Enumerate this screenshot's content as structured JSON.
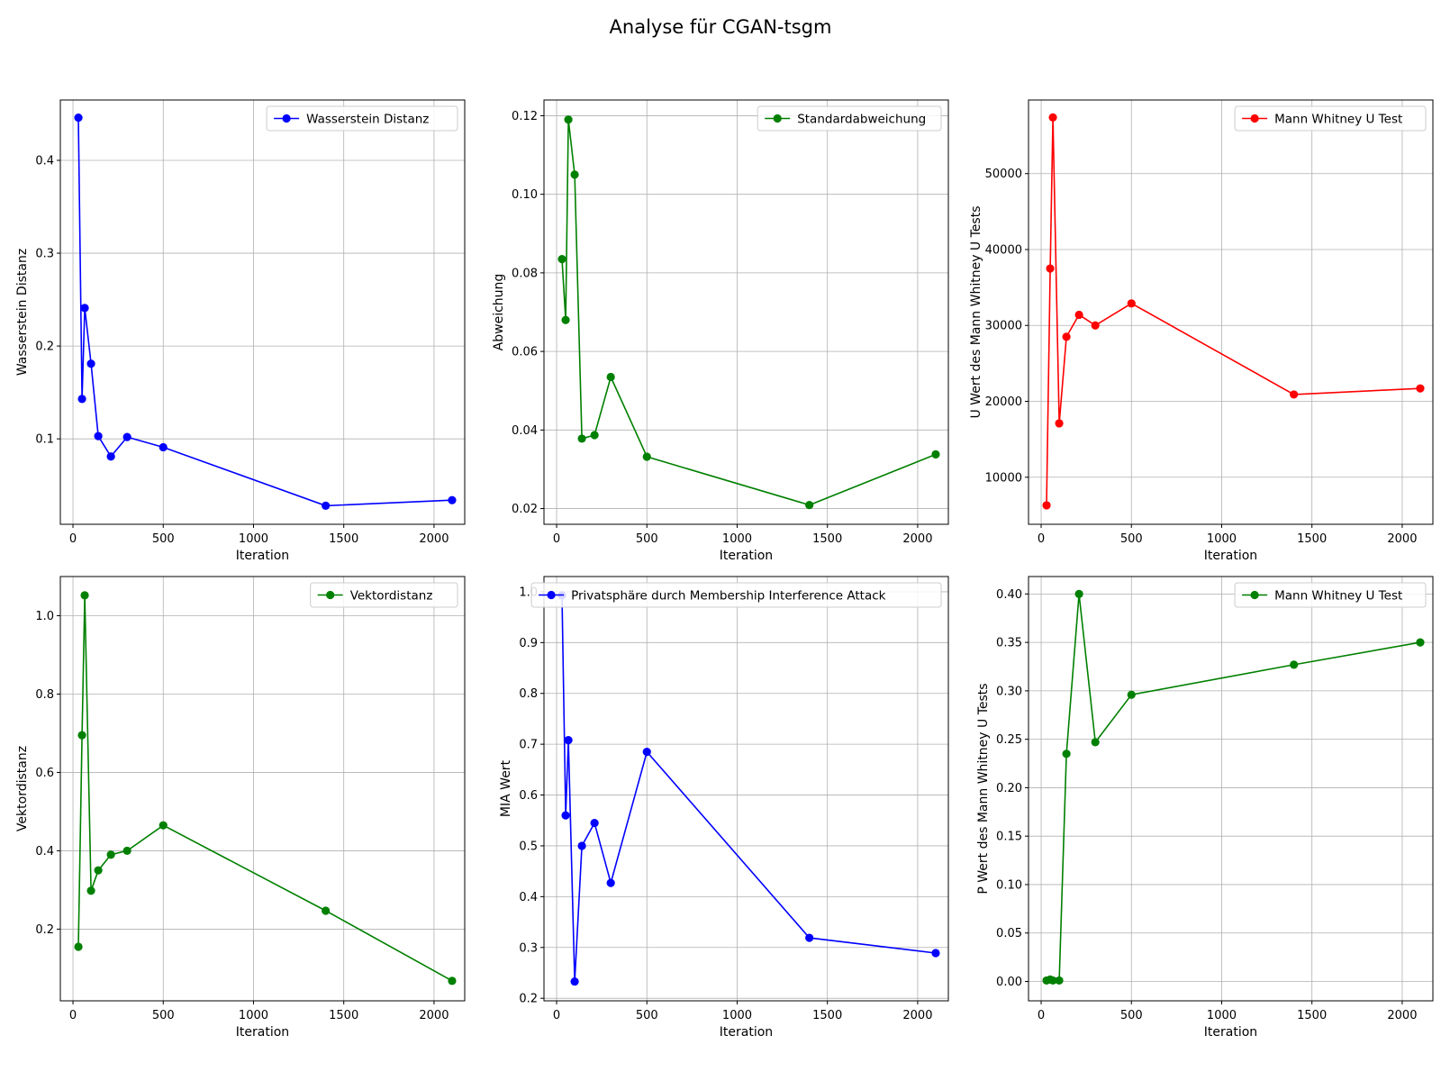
{
  "suptitle": "Analyse für CGAN-tsgm",
  "chart_data": [
    {
      "type": "line",
      "xlabel": "Iteration",
      "ylabel": "Wasserstein Distanz",
      "legend": "Wasserstein Distanz",
      "legend_loc": "upper right",
      "color": "#0000ff",
      "grid": true,
      "xlim": [
        -70,
        2170
      ],
      "ylim": [
        0.008,
        0.465
      ],
      "xticks": [
        0,
        500,
        1000,
        1500,
        2000
      ],
      "yticks": [
        0.1,
        0.2,
        0.3,
        0.4
      ],
      "yticklabels": [
        "0.1",
        "0.2",
        "0.3",
        "0.4"
      ],
      "x": [
        30,
        50,
        65,
        100,
        140,
        210,
        300,
        500,
        1400,
        2100
      ],
      "y": [
        0.446,
        0.143,
        0.241,
        0.181,
        0.103,
        0.081,
        0.102,
        0.091,
        0.028,
        0.034
      ]
    },
    {
      "type": "line",
      "xlabel": "Iteration",
      "ylabel": "Abweichung",
      "legend": "Standardabweichung",
      "legend_loc": "upper right",
      "color": "#008000",
      "grid": true,
      "xlim": [
        -70,
        2170
      ],
      "ylim": [
        0.016,
        0.124
      ],
      "xticks": [
        0,
        500,
        1000,
        1500,
        2000
      ],
      "yticks": [
        0.02,
        0.04,
        0.06,
        0.08,
        0.1,
        0.12
      ],
      "yticklabels": [
        "0.02",
        "0.04",
        "0.06",
        "0.08",
        "0.10",
        "0.12"
      ],
      "x": [
        30,
        50,
        65,
        100,
        140,
        210,
        300,
        500,
        1400,
        2100
      ],
      "y": [
        0.0835,
        0.068,
        0.119,
        0.105,
        0.0378,
        0.0387,
        0.0535,
        0.0332,
        0.0209,
        0.0338
      ]
    },
    {
      "type": "line",
      "xlabel": "Iteration",
      "ylabel": "U Wert des Mann Whitney U Tests",
      "legend": "Mann Whitney U Test",
      "legend_loc": "upper right",
      "color": "#ff0000",
      "grid": true,
      "xlim": [
        -70,
        2170
      ],
      "ylim": [
        3800,
        59700
      ],
      "xticks": [
        0,
        500,
        1000,
        1500,
        2000
      ],
      "yticks": [
        10000,
        20000,
        30000,
        40000,
        50000
      ],
      "yticklabels": [
        "10000",
        "20000",
        "30000",
        "40000",
        "50000"
      ],
      "x": [
        30,
        50,
        65,
        100,
        140,
        210,
        300,
        500,
        1400,
        2100
      ],
      "y": [
        6300,
        37500,
        57400,
        17100,
        28500,
        31400,
        30000,
        32900,
        20900,
        21700
      ]
    },
    {
      "type": "line",
      "xlabel": "Iteration",
      "ylabel": "Vektordistanz",
      "legend": "Vektordistanz",
      "legend_loc": "upper right",
      "color": "#008000",
      "grid": true,
      "xlim": [
        -70,
        2170
      ],
      "ylim": [
        0.017,
        1.1
      ],
      "xticks": [
        0,
        500,
        1000,
        1500,
        2000
      ],
      "yticks": [
        0.2,
        0.4,
        0.6,
        0.8,
        1.0
      ],
      "yticklabels": [
        "0.2",
        "0.4",
        "0.6",
        "0.8",
        "1.0"
      ],
      "x": [
        30,
        50,
        65,
        100,
        140,
        210,
        300,
        500,
        1400,
        2100
      ],
      "y": [
        0.155,
        0.695,
        1.052,
        0.298,
        0.35,
        0.39,
        0.4,
        0.465,
        0.247,
        0.068
      ]
    },
    {
      "type": "line",
      "xlabel": "Iteration",
      "ylabel": "MIA Wert",
      "legend": "Privatsphäre durch Membership Interference Attack",
      "legend_loc": "upper right",
      "color": "#0000ff",
      "grid": true,
      "xlim": [
        -70,
        2170
      ],
      "ylim": [
        0.195,
        1.03
      ],
      "xticks": [
        0,
        500,
        1000,
        1500,
        2000
      ],
      "yticks": [
        0.2,
        0.3,
        0.4,
        0.5,
        0.6,
        0.7,
        0.8,
        0.9,
        1.0
      ],
      "yticklabels": [
        "0.2",
        "0.3",
        "0.4",
        "0.5",
        "0.6",
        "0.7",
        "0.8",
        "0.9",
        "1.0"
      ],
      "x": [
        30,
        50,
        65,
        100,
        140,
        210,
        300,
        500,
        1400,
        2100
      ],
      "y": [
        0.993,
        0.56,
        0.708,
        0.233,
        0.5,
        0.545,
        0.427,
        0.685,
        0.319,
        0.289
      ]
    },
    {
      "type": "line",
      "xlabel": "Iteration",
      "ylabel": "P Wert des Mann Whitney U Tests",
      "legend": "Mann Whitney U Test",
      "legend_loc": "upper right",
      "color": "#008000",
      "grid": true,
      "xlim": [
        -70,
        2170
      ],
      "ylim": [
        -0.02,
        0.418
      ],
      "xticks": [
        0,
        500,
        1000,
        1500,
        2000
      ],
      "yticks": [
        0.0,
        0.05,
        0.1,
        0.15,
        0.2,
        0.25,
        0.3,
        0.35,
        0.4
      ],
      "yticklabels": [
        "0.00",
        "0.05",
        "0.10",
        "0.15",
        "0.20",
        "0.25",
        "0.30",
        "0.35",
        "0.40"
      ],
      "x": [
        30,
        50,
        65,
        100,
        140,
        210,
        300,
        500,
        1400,
        2100
      ],
      "y": [
        0.001,
        0.002,
        0.001,
        0.001,
        0.235,
        0.4,
        0.247,
        0.296,
        0.327,
        0.35
      ]
    }
  ]
}
